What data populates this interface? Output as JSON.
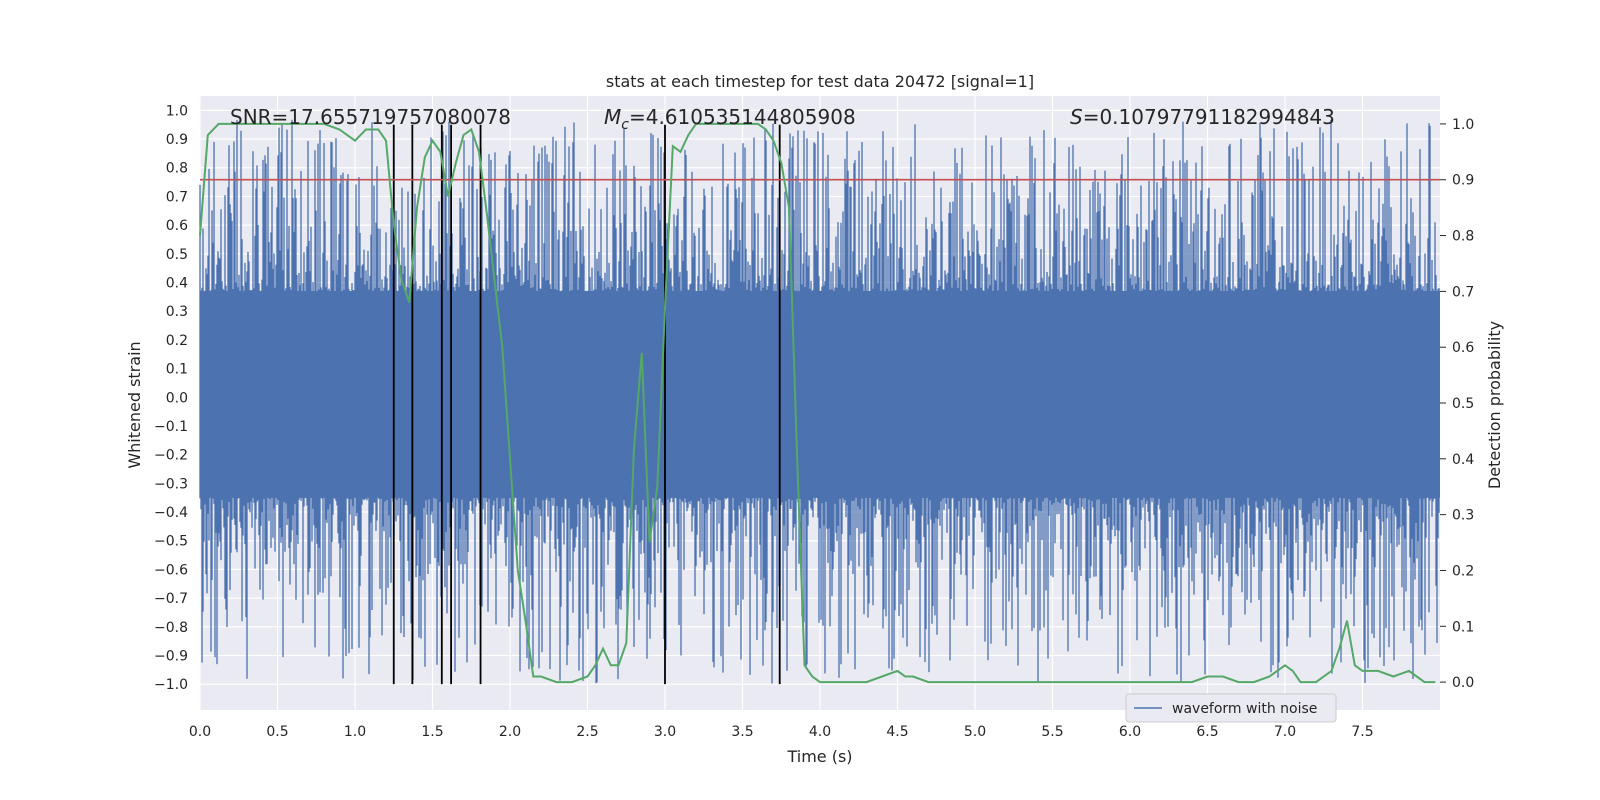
{
  "chart_data": {
    "type": "line",
    "title": "stats at each timestep for test data 20472 [signal=1]",
    "xlabel": "Time (s)",
    "ylabel": "Whitened strain",
    "y2label": "Detection probability",
    "xlim": [
      0.0,
      8.0
    ],
    "ylim": [
      -1.09,
      1.05
    ],
    "y2lim": [
      -0.05,
      1.05
    ],
    "x_ticks": [
      "0.0",
      "0.5",
      "1.0",
      "1.5",
      "2.0",
      "2.5",
      "3.0",
      "3.5",
      "4.0",
      "4.5",
      "5.0",
      "5.5",
      "6.0",
      "6.5",
      "7.0",
      "7.5"
    ],
    "x_tick_values": [
      0.0,
      0.5,
      1.0,
      1.5,
      2.0,
      2.5,
      3.0,
      3.5,
      4.0,
      4.5,
      5.0,
      5.5,
      6.0,
      6.5,
      7.0,
      7.5
    ],
    "y_ticks": [
      "1.0",
      "0.9",
      "0.8",
      "0.7",
      "0.6",
      "0.5",
      "0.4",
      "0.3",
      "0.2",
      "0.1",
      "0.0",
      "−0.1",
      "−0.2",
      "−0.3",
      "−0.4",
      "−0.5",
      "−0.6",
      "−0.7",
      "−0.8",
      "−0.9",
      "−1.0"
    ],
    "y_tick_values": [
      1.0,
      0.9,
      0.8,
      0.7,
      0.6,
      0.5,
      0.4,
      0.3,
      0.2,
      0.1,
      0.0,
      -0.1,
      -0.2,
      -0.3,
      -0.4,
      -0.5,
      -0.6,
      -0.7,
      -0.8,
      -0.9,
      -1.0
    ],
    "y2_ticks": [
      "1.0",
      "0.9",
      "0.8",
      "0.7",
      "0.6",
      "0.5",
      "0.4",
      "0.3",
      "0.2",
      "0.1",
      "0.0"
    ],
    "y2_tick_values": [
      1.0,
      0.9,
      0.8,
      0.7,
      0.6,
      0.5,
      0.4,
      0.3,
      0.2,
      0.1,
      0.0
    ],
    "annotations": {
      "snr": "SNR=17.655719757080078",
      "mc_symbol": "M",
      "mc_sub": "c",
      "mc_value": "=4.610535144805908",
      "s_symbol": "S",
      "s_value": "=0.10797791182994843"
    },
    "legend": {
      "label": "waveform with noise",
      "placement": "lower-right"
    },
    "threshold": {
      "value": 0.9,
      "axis": "y2",
      "color": "#c44e52"
    },
    "event_lines_x": [
      1.25,
      1.37,
      1.56,
      1.62,
      1.81,
      3.0,
      3.74
    ],
    "event_line_yrange": [
      -1.0,
      0.95
    ],
    "waveform": {
      "name": "waveform with noise",
      "color": "#4c72b0",
      "band_inner": [
        -0.35,
        0.37
      ],
      "spike_top": 0.97,
      "spike_bottom": -1.0
    },
    "detection_probability": {
      "color": "#55a868",
      "x": [
        0.0,
        0.05,
        0.12,
        0.2,
        0.3,
        0.4,
        0.5,
        0.6,
        0.7,
        0.8,
        0.9,
        1.0,
        1.07,
        1.15,
        1.2,
        1.25,
        1.3,
        1.35,
        1.4,
        1.45,
        1.5,
        1.55,
        1.6,
        1.65,
        1.7,
        1.75,
        1.8,
        1.85,
        1.9,
        1.95,
        2.0,
        2.05,
        2.1,
        2.15,
        2.2,
        2.3,
        2.4,
        2.5,
        2.55,
        2.6,
        2.65,
        2.7,
        2.75,
        2.8,
        2.85,
        2.9,
        2.95,
        3.0,
        3.05,
        3.1,
        3.15,
        3.2,
        3.3,
        3.4,
        3.5,
        3.6,
        3.65,
        3.7,
        3.75,
        3.8,
        3.85,
        3.9,
        3.95,
        4.0,
        4.1,
        4.2,
        4.3,
        4.4,
        4.5,
        4.55,
        4.6,
        4.7,
        4.8,
        4.9,
        5.0,
        5.2,
        5.4,
        5.6,
        5.8,
        6.0,
        6.2,
        6.4,
        6.5,
        6.6,
        6.7,
        6.8,
        6.9,
        7.0,
        7.05,
        7.1,
        7.2,
        7.3,
        7.35,
        7.4,
        7.45,
        7.5,
        7.6,
        7.7,
        7.8,
        7.9,
        7.97
      ],
      "y": [
        0.8,
        0.98,
        1.0,
        1.0,
        1.0,
        1.0,
        1.0,
        1.0,
        1.0,
        1.0,
        0.99,
        0.97,
        0.99,
        0.99,
        0.97,
        0.82,
        0.72,
        0.68,
        0.85,
        0.94,
        0.97,
        0.95,
        0.87,
        0.93,
        0.98,
        0.99,
        0.95,
        0.84,
        0.72,
        0.6,
        0.4,
        0.2,
        0.11,
        0.01,
        0.01,
        0.0,
        0.0,
        0.01,
        0.03,
        0.06,
        0.03,
        0.03,
        0.07,
        0.42,
        0.59,
        0.25,
        0.35,
        0.67,
        0.96,
        0.95,
        0.98,
        1.0,
        1.0,
        1.0,
        1.0,
        1.0,
        0.99,
        0.97,
        0.93,
        0.85,
        0.42,
        0.03,
        0.01,
        0.0,
        0.0,
        0.0,
        0.0,
        0.01,
        0.02,
        0.01,
        0.01,
        0.0,
        0.0,
        0.0,
        0.0,
        0.0,
        0.0,
        0.0,
        0.0,
        0.0,
        0.0,
        0.0,
        0.01,
        0.01,
        0.0,
        0.0,
        0.01,
        0.03,
        0.02,
        0.0,
        0.0,
        0.02,
        0.06,
        0.11,
        0.03,
        0.02,
        0.02,
        0.01,
        0.02,
        0.0,
        0.0
      ]
    }
  }
}
